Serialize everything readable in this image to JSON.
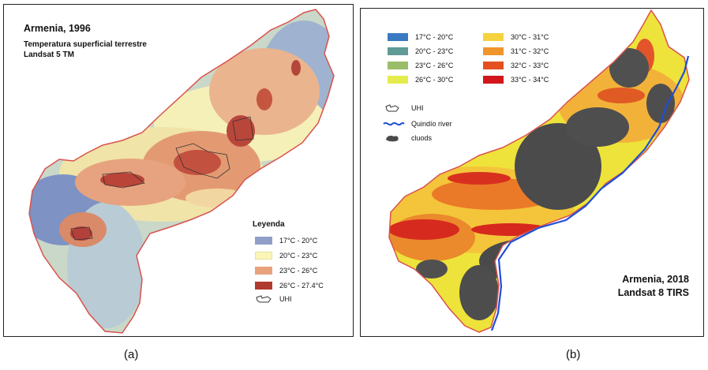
{
  "panel_a": {
    "title": "Armenia, 1996",
    "subtitle_1": "Temperatura superficial terrestre",
    "subtitle_2": "Landsat 5 TM",
    "legend_title": "Leyenda",
    "legend": [
      {
        "label": "17°C - 20°C",
        "color": "#8f9fc8"
      },
      {
        "label": "20°C - 23°C",
        "color": "#fbf6b8"
      },
      {
        "label": "23°C - 26°C",
        "color": "#e8a27c"
      },
      {
        "label": "26°C - 27.4°C",
        "color": "#b03a30"
      }
    ],
    "uhi_label": "UHI",
    "caption": "(a)"
  },
  "panel_b": {
    "legend_left": [
      {
        "label": "17°C - 20°C",
        "color": "#3a7ac2"
      },
      {
        "label": "20°C - 23°C",
        "color": "#5f9a96"
      },
      {
        "label": "23°C - 26°C",
        "color": "#9bbd69"
      },
      {
        "label": "26°C - 30°C",
        "color": "#e4ec4d"
      }
    ],
    "legend_right": [
      {
        "label": "30°C - 31°C",
        "color": "#f6d23e"
      },
      {
        "label": "31°C - 32°C",
        "color": "#f0942c"
      },
      {
        "label": "32°C - 33°C",
        "color": "#e4501f"
      },
      {
        "label": "33°C - 34°C",
        "color": "#d1171b"
      }
    ],
    "uhi_label": "UHI",
    "river_label": "Quindío river",
    "clouds_label": "cluods",
    "title_1": "Armenia, 2018",
    "title_2": "Landsat 8 TIRS",
    "caption": "(b)"
  }
}
